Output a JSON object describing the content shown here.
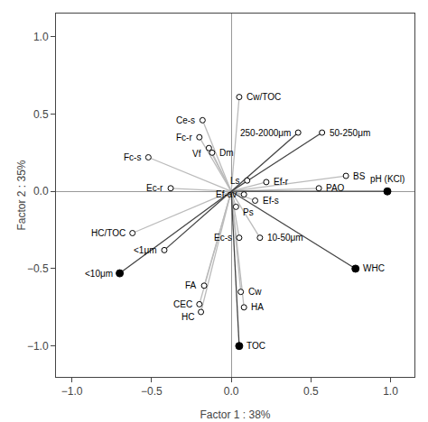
{
  "chart_data": {
    "type": "scatter",
    "xlabel": "Factor 1 : 38%",
    "ylabel": "Factor 2 : 35%",
    "xlim": [
      -1.1,
      1.15
    ],
    "ylim": [
      -1.2,
      1.15
    ],
    "xticks": [
      {
        "value": -1.0,
        "label": "−1.0"
      },
      {
        "value": -0.5,
        "label": "−0.5"
      },
      {
        "value": 0.0,
        "label": "0.0"
      },
      0.5,
      {
        "value": 1.0,
        "label": "1.0"
      }
    ],
    "yticks": [
      {
        "value": -1.0,
        "label": "−1.0"
      },
      {
        "value": -0.5,
        "label": "−0.5"
      },
      {
        "value": 0.0,
        "label": "0.0"
      },
      0.5,
      {
        "value": 1.0,
        "label": "1.0"
      }
    ],
    "grid": false,
    "series": [
      {
        "marker": "open",
        "labels": [
          "Cw/TOC",
          "Ce-s",
          "Fc-r",
          "Vf",
          "Dm",
          "Fc-s",
          "Ec-r",
          "Ls",
          "Ef-r",
          "Ef-av",
          "Ef-s",
          "Ps",
          "HC/TOC",
          "<1μm",
          "Ec-s",
          "10-50μm",
          "FA",
          "Cw",
          "CEC",
          "HA",
          "HC",
          "250-2000μm",
          "50-250μm",
          "PAO",
          "BS"
        ],
        "x": [
          0.05,
          -0.18,
          -0.2,
          -0.14,
          -0.12,
          -0.52,
          -0.38,
          0.1,
          0.22,
          0.08,
          0.15,
          0.03,
          -0.62,
          -0.42,
          0.05,
          0.18,
          -0.17,
          0.06,
          -0.2,
          0.08,
          -0.19,
          0.42,
          0.57,
          0.55,
          0.72
        ],
        "y": [
          0.61,
          0.46,
          0.35,
          0.28,
          0.25,
          0.22,
          0.02,
          0.07,
          0.06,
          -0.02,
          -0.06,
          -0.1,
          -0.27,
          -0.38,
          -0.3,
          -0.3,
          -0.61,
          -0.65,
          -0.73,
          -0.75,
          -0.78,
          0.38,
          0.38,
          0.02,
          0.1
        ],
        "colors": [
          "#bbbbbb",
          "#bbbbbb",
          "#bbbbbb",
          "#bbbbbb",
          "#bbbbbb",
          "#bbbbbb",
          "#bbbbbb",
          "#bbbbbb",
          "#bbbbbb",
          "#bbbbbb",
          "#bbbbbb",
          "#bbbbbb",
          "#bbbbbb",
          "#444444",
          "#bbbbbb",
          "#bbbbbb",
          "#bbbbbb",
          "#bbbbbb",
          "#bbbbbb",
          "#bbbbbb",
          "#bbbbbb",
          "#444444",
          "#444444",
          "#bbbbbb",
          "#bbbbbb"
        ]
      },
      {
        "marker": "filled",
        "labels": [
          "pH (KCl)",
          "WHC",
          "TOC",
          "<10μm"
        ],
        "x": [
          0.98,
          0.78,
          0.05,
          -0.7
        ],
        "y": [
          0.0,
          -0.5,
          -1.0,
          -0.53
        ],
        "colors": [
          "#444444",
          "#444444",
          "#444444",
          "#444444"
        ]
      }
    ]
  }
}
